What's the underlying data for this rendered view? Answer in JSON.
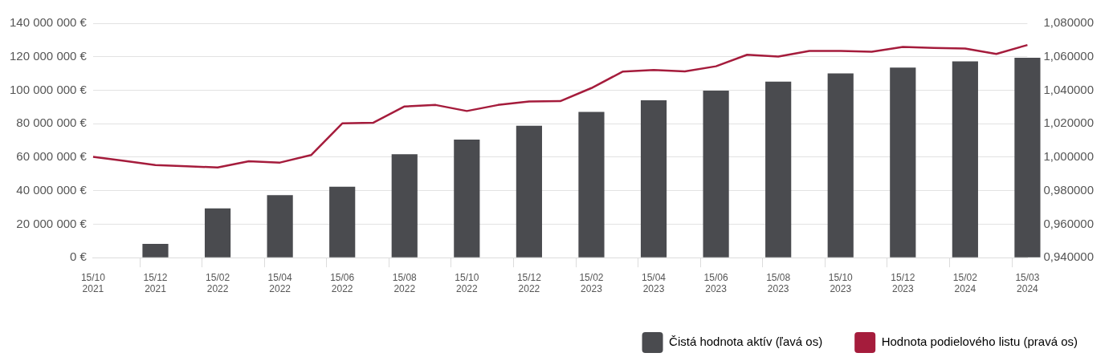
{
  "chart_data": {
    "type": "bar",
    "categories": [
      "15/10 2021",
      null,
      "15/12 2021",
      null,
      "15/02 2022",
      null,
      "15/04 2022",
      null,
      "15/06 2022",
      null,
      "15/08 2022",
      null,
      "15/10 2022",
      null,
      "15/12 2022",
      null,
      "15/02 2023",
      null,
      "15/04 2023",
      null,
      "15/06 2023",
      null,
      "15/08 2023",
      null,
      "15/10 2023",
      null,
      "15/12 2023",
      null,
      "15/02 2024",
      null,
      "15/03 2024"
    ],
    "series": [
      {
        "name": "Čistá hodnota aktív (ľavá os)",
        "color": "#4a4b4f",
        "values": [
          null,
          null,
          8300000,
          null,
          29500000,
          null,
          37300000,
          null,
          42400000,
          null,
          61800000,
          null,
          70500000,
          null,
          78800000,
          null,
          87100000,
          null,
          94000000,
          null,
          99700000,
          null,
          105100000,
          null,
          110100000,
          null,
          113500000,
          null,
          117200000,
          null,
          119400000
        ]
      },
      {
        "name": "Hodnota podielového listu (pravá os)",
        "type": "line",
        "axis": "y2",
        "color": "#a51c3c",
        "values": [
          1.0002,
          0.9978,
          0.9953,
          0.9946,
          0.9939,
          0.9976,
          0.9968,
          1.0013,
          1.0202,
          1.0206,
          1.0303,
          1.0312,
          1.0276,
          1.0312,
          1.0333,
          1.0335,
          1.0413,
          1.0511,
          1.0521,
          1.0513,
          1.0543,
          1.0612,
          1.0601,
          1.0635,
          1.0635,
          1.063,
          1.0659,
          1.0653,
          1.0649,
          1.0617,
          1.067
        ]
      }
    ],
    "ylim": [
      0,
      140000000
    ],
    "yticks": [
      {
        "value": 0,
        "label": "0 €"
      },
      {
        "value": 20000000,
        "label": "20 000 000 €"
      },
      {
        "value": 40000000,
        "label": "40 000 000 €"
      },
      {
        "value": 60000000,
        "label": "60 000 000 €"
      },
      {
        "value": 80000000,
        "label": "80 000 000 €"
      },
      {
        "value": 100000000,
        "label": "100 000 000 €"
      },
      {
        "value": 120000000,
        "label": "120 000 000 €"
      },
      {
        "value": 140000000,
        "label": "140 000 000 €"
      }
    ],
    "y2lim": [
      0.94,
      1.08
    ],
    "y2ticks": [
      {
        "value": 0.94,
        "label": "0,940000"
      },
      {
        "value": 0.96,
        "label": "0,960000"
      },
      {
        "value": 0.98,
        "label": "0,980000"
      },
      {
        "value": 1.0,
        "label": "1,000000"
      },
      {
        "value": 1.02,
        "label": "1,020000"
      },
      {
        "value": 1.04,
        "label": "1,040000"
      },
      {
        "value": 1.06,
        "label": "1,060000"
      },
      {
        "value": 1.08,
        "label": "1,080000"
      }
    ],
    "grid": "y",
    "legend": "bottom",
    "marker": "none",
    "line_style": "solid"
  }
}
